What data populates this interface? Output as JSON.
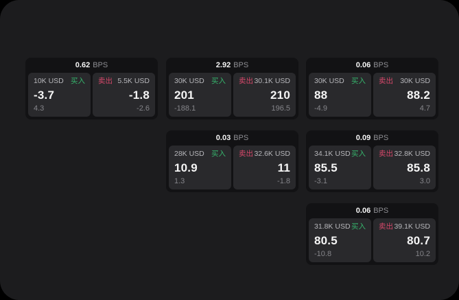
{
  "labels": {
    "bps_unit": "BPS",
    "buy": "买入",
    "sell": "卖出"
  },
  "colors": {
    "page_bg": "#1c1c1e",
    "card_bg": "#121214",
    "panel_bg": "#29292c",
    "buy_green": "#36b46c",
    "sell_red": "#d5486a",
    "text_primary": "#f5f5f5",
    "text_muted": "#8e8e93"
  },
  "cards": [
    {
      "bps": "0.62",
      "buy": {
        "amount": "10K USD",
        "price": "-3.7",
        "change": "4.3"
      },
      "sell": {
        "amount": "5.5K USD",
        "price": "-1.8",
        "change": "-2.6"
      }
    },
    {
      "bps": "2.92",
      "buy": {
        "amount": "30K USD",
        "price": "201",
        "change": "-188.1"
      },
      "sell": {
        "amount": "30.1K USD",
        "price": "210",
        "change": "196.5"
      }
    },
    {
      "bps": "0.06",
      "buy": {
        "amount": "30K USD",
        "price": "88",
        "change": "-4.9"
      },
      "sell": {
        "amount": "30K USD",
        "price": "88.2",
        "change": "4.7"
      }
    },
    {
      "bps": "0.03",
      "buy": {
        "amount": "28K USD",
        "price": "10.9",
        "change": "1.3"
      },
      "sell": {
        "amount": "32.6K USD",
        "price": "11",
        "change": "-1.8"
      }
    },
    {
      "bps": "0.09",
      "buy": {
        "amount": "34.1K USD",
        "price": "85.5",
        "change": "-3.1"
      },
      "sell": {
        "amount": "32.8K USD",
        "price": "85.8",
        "change": "3.0"
      }
    },
    {
      "bps": "0.06",
      "buy": {
        "amount": "31.8K USD",
        "price": "80.5",
        "change": "-10.8"
      },
      "sell": {
        "amount": "39.1K USD",
        "price": "80.7",
        "change": "10.2"
      }
    }
  ]
}
